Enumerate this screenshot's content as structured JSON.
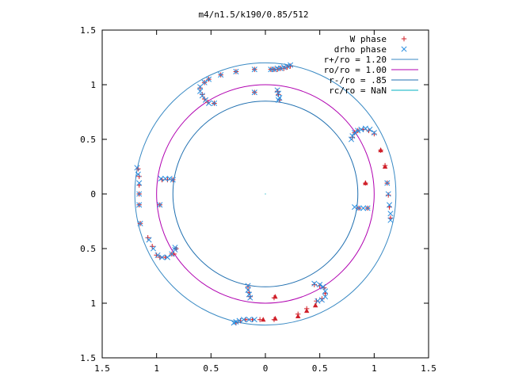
{
  "chart_data": {
    "type": "scatter",
    "title": "m4/n1.5/k190/0.85/512",
    "xlim": [
      -1.5,
      1.5
    ],
    "ylim": [
      -1.5,
      1.5
    ],
    "xticks": [
      -1.5,
      -1,
      -0.5,
      0,
      0.5,
      1,
      1.5
    ],
    "yticks": [
      -1.5,
      -1,
      -0.5,
      0,
      0.5,
      1,
      1.5
    ],
    "xtick_labels": [
      "1.5",
      "1",
      "0.5",
      "0",
      "0.5",
      "1",
      "1.5"
    ],
    "ytick_labels": [
      "1.5",
      "1",
      "0.5",
      "0",
      "0.5",
      "1",
      "1.5"
    ],
    "grid": false,
    "legend_position": "top-right",
    "curves": [
      {
        "name": "r+/ro = 1.20",
        "r": 1.2,
        "color": "#3a8ac4"
      },
      {
        "name": "ro/ro = 1.00",
        "r": 1.0,
        "color": "#b000b0"
      },
      {
        "name": "r-/ro = .85",
        "r": 0.85,
        "color": "#1f6fb0"
      },
      {
        "name": "rc/ro = NaN",
        "r": null,
        "color": "#00b0c0"
      }
    ],
    "series": [
      {
        "name": "W phase",
        "marker": "plus",
        "color": "#d0202a",
        "points": [
          [
            0.23,
            1.17
          ],
          [
            0.2,
            1.16
          ],
          [
            0.17,
            1.15
          ],
          [
            0.14,
            1.15
          ],
          [
            0.11,
            1.14
          ],
          [
            0.08,
            1.14
          ],
          [
            0.05,
            1.14
          ],
          [
            -0.1,
            1.14
          ],
          [
            -0.27,
            1.12
          ],
          [
            -0.41,
            1.09
          ],
          [
            -0.52,
            1.05
          ],
          [
            -0.56,
            1.02
          ],
          [
            -0.6,
            0.97
          ],
          [
            -0.58,
            0.91
          ],
          [
            -0.56,
            0.87
          ],
          [
            -0.53,
            0.84
          ],
          [
            -0.47,
            0.83
          ],
          [
            -0.1,
            0.93
          ],
          [
            0.11,
            0.94
          ],
          [
            0.12,
            0.91
          ],
          [
            0.13,
            0.86
          ],
          [
            0.8,
            0.52
          ],
          [
            0.82,
            0.56
          ],
          [
            0.85,
            0.58
          ],
          [
            0.9,
            0.59
          ],
          [
            0.95,
            0.58
          ],
          [
            1.0,
            0.55
          ],
          [
            1.06,
            0.4
          ],
          [
            1.1,
            0.26
          ],
          [
            0.92,
            0.1
          ],
          [
            1.12,
            0.1
          ],
          [
            1.13,
            -0.01
          ],
          [
            1.14,
            -0.12
          ],
          [
            1.15,
            -0.22
          ],
          [
            0.94,
            -0.13
          ],
          [
            0.86,
            -0.13
          ],
          [
            -0.95,
            0.13
          ],
          [
            -0.9,
            0.13
          ],
          [
            -0.85,
            0.13
          ],
          [
            -1.17,
            0.23
          ],
          [
            -1.16,
            0.16
          ],
          [
            -1.16,
            0.08
          ],
          [
            -1.16,
            0.0
          ],
          [
            -1.16,
            -0.1
          ],
          [
            -1.15,
            -0.27
          ],
          [
            -0.97,
            -0.1
          ],
          [
            -1.08,
            -0.4
          ],
          [
            -1.04,
            -0.48
          ],
          [
            -1.0,
            -0.56
          ],
          [
            -0.97,
            -0.58
          ],
          [
            -0.92,
            -0.58
          ],
          [
            -0.86,
            -0.55
          ],
          [
            -0.82,
            -0.5
          ],
          [
            -0.84,
            -0.55
          ],
          [
            -0.16,
            -0.85
          ],
          [
            -0.15,
            -0.9
          ],
          [
            -0.14,
            -0.94
          ],
          [
            0.08,
            -0.95
          ],
          [
            0.45,
            -0.83
          ],
          [
            0.5,
            -0.84
          ],
          [
            0.54,
            -0.86
          ],
          [
            0.55,
            -0.91
          ],
          [
            0.52,
            -0.96
          ],
          [
            0.47,
            -0.98
          ],
          [
            0.38,
            -1.05
          ],
          [
            0.3,
            -1.1
          ],
          [
            0.08,
            -1.15
          ],
          [
            -0.05,
            -1.15
          ],
          [
            -0.12,
            -1.15
          ],
          [
            -0.18,
            -1.15
          ],
          [
            -0.23,
            -1.16
          ],
          [
            -0.27,
            -1.18
          ]
        ]
      },
      {
        "name": "drho phase",
        "marker": "cross",
        "color": "#2a8fe0",
        "points": [
          [
            0.23,
            1.18
          ],
          [
            0.2,
            1.17
          ],
          [
            0.17,
            1.16
          ],
          [
            0.14,
            1.15
          ],
          [
            0.11,
            1.15
          ],
          [
            0.08,
            1.14
          ],
          [
            0.05,
            1.14
          ],
          [
            -0.1,
            1.14
          ],
          [
            -0.27,
            1.12
          ],
          [
            -0.41,
            1.09
          ],
          [
            -0.52,
            1.05
          ],
          [
            -0.56,
            1.02
          ],
          [
            -0.6,
            0.98
          ],
          [
            -0.6,
            0.94
          ],
          [
            -0.58,
            0.9
          ],
          [
            -0.55,
            0.86
          ],
          [
            -0.52,
            0.83
          ],
          [
            -0.47,
            0.83
          ],
          [
            -0.1,
            0.93
          ],
          [
            0.11,
            0.95
          ],
          [
            0.12,
            0.92
          ],
          [
            0.13,
            0.88
          ],
          [
            0.12,
            0.86
          ],
          [
            0.79,
            0.5
          ],
          [
            0.8,
            0.53
          ],
          [
            0.82,
            0.56
          ],
          [
            0.85,
            0.58
          ],
          [
            0.88,
            0.59
          ],
          [
            0.92,
            0.6
          ],
          [
            0.96,
            0.59
          ],
          [
            1.0,
            0.56
          ],
          [
            1.12,
            0.1
          ],
          [
            1.13,
            0.0
          ],
          [
            1.14,
            -0.1
          ],
          [
            1.15,
            -0.18
          ],
          [
            1.15,
            -0.24
          ],
          [
            0.82,
            -0.12
          ],
          [
            0.86,
            -0.13
          ],
          [
            0.9,
            -0.13
          ],
          [
            0.94,
            -0.13
          ],
          [
            -0.96,
            0.14
          ],
          [
            -0.92,
            0.14
          ],
          [
            -0.88,
            0.14
          ],
          [
            -0.85,
            0.13
          ],
          [
            -1.18,
            0.24
          ],
          [
            -1.17,
            0.18
          ],
          [
            -1.16,
            0.1
          ],
          [
            -1.16,
            0.0
          ],
          [
            -1.16,
            -0.1
          ],
          [
            -1.15,
            -0.27
          ],
          [
            -0.97,
            -0.1
          ],
          [
            -1.07,
            -0.42
          ],
          [
            -1.03,
            -0.5
          ],
          [
            -0.99,
            -0.56
          ],
          [
            -0.95,
            -0.58
          ],
          [
            -0.9,
            -0.58
          ],
          [
            -0.86,
            -0.55
          ],
          [
            -0.83,
            -0.51
          ],
          [
            -0.83,
            -0.49
          ],
          [
            -0.16,
            -0.84
          ],
          [
            -0.16,
            -0.88
          ],
          [
            -0.15,
            -0.92
          ],
          [
            -0.14,
            -0.95
          ],
          [
            0.45,
            -0.82
          ],
          [
            0.5,
            -0.83
          ],
          [
            0.53,
            -0.85
          ],
          [
            0.55,
            -0.89
          ],
          [
            0.55,
            -0.94
          ],
          [
            0.52,
            -0.97
          ],
          [
            0.48,
            -0.98
          ],
          [
            -0.1,
            -1.15
          ],
          [
            -0.15,
            -1.15
          ],
          [
            -0.2,
            -1.15
          ],
          [
            -0.24,
            -1.16
          ],
          [
            -0.27,
            -1.17
          ],
          [
            -0.29,
            -1.18
          ]
        ]
      },
      {
        "name": "",
        "marker": "triangle",
        "color": "#d0202a",
        "points": [
          [
            0.3,
            -1.12
          ],
          [
            0.38,
            -1.07
          ],
          [
            0.46,
            -1.02
          ],
          [
            0.09,
            -1.14
          ],
          [
            -0.02,
            -1.15
          ],
          [
            0.09,
            -0.94
          ],
          [
            0.92,
            0.1
          ],
          [
            1.06,
            0.4
          ],
          [
            1.1,
            0.25
          ]
        ]
      }
    ]
  }
}
